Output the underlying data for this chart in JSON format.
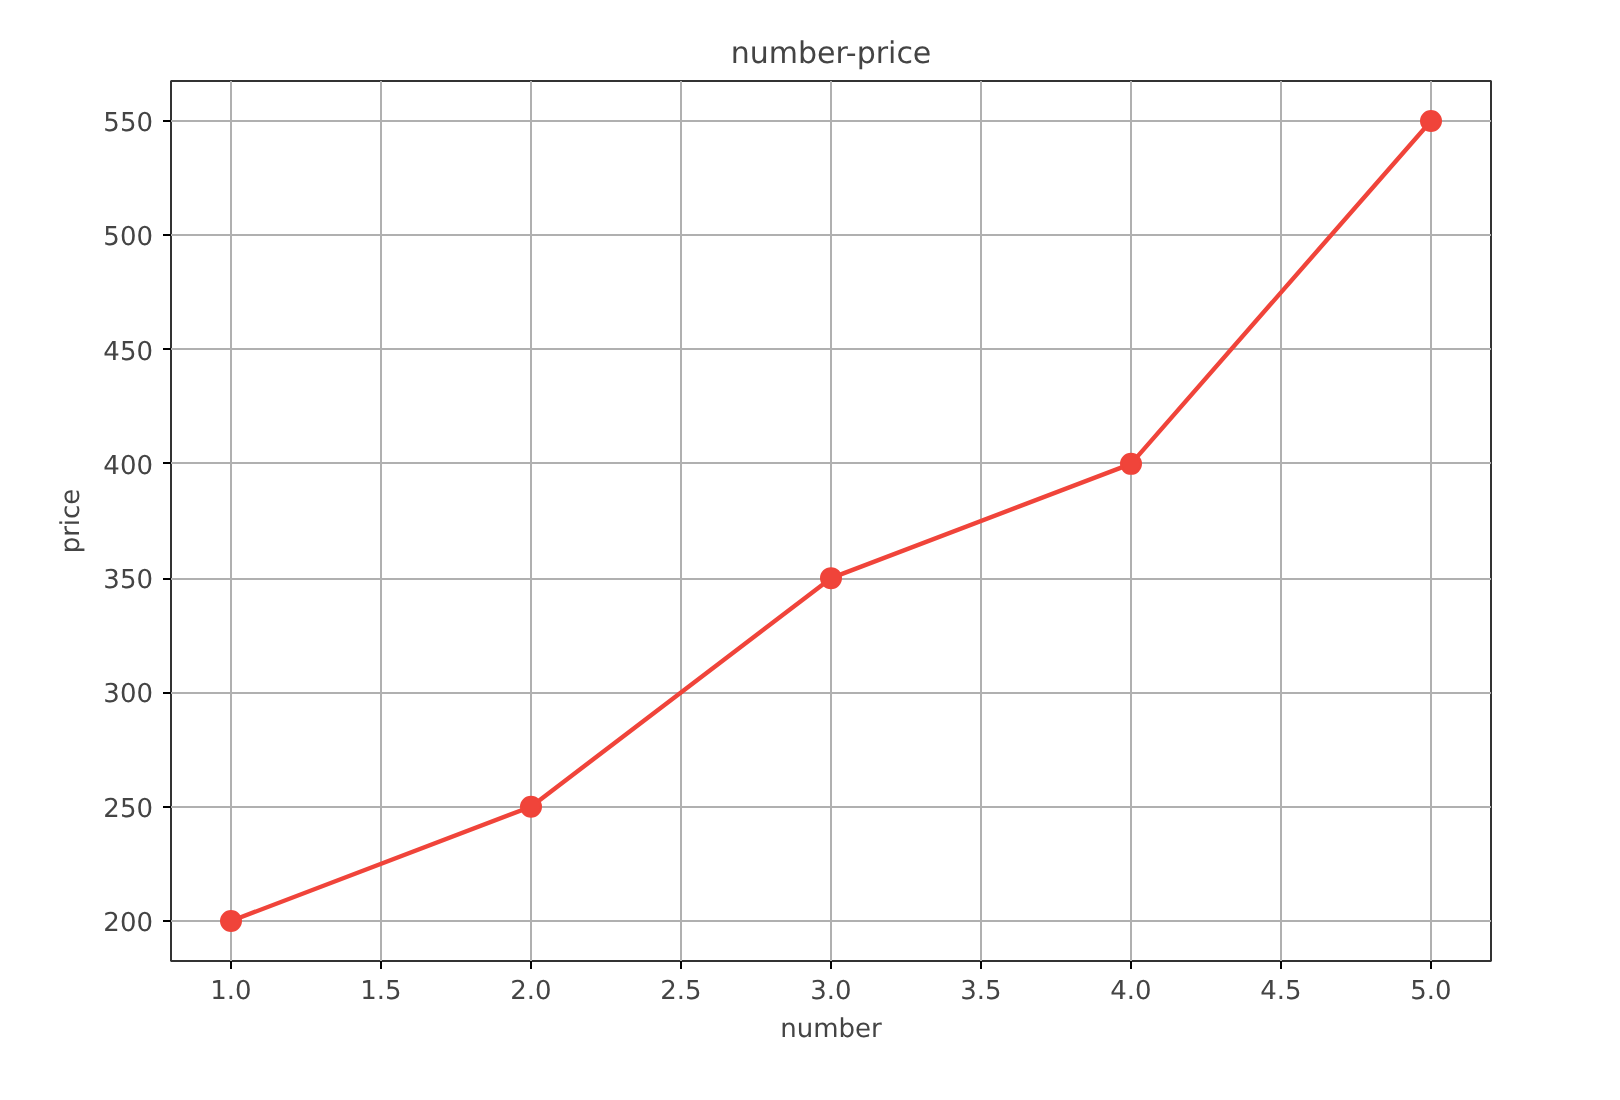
{
  "chart_data": {
    "type": "line",
    "title": "number-price",
    "xlabel": "number",
    "ylabel": "price",
    "x": [
      1,
      2,
      3,
      4,
      5
    ],
    "series": [
      {
        "color": "#f0443a",
        "values": [
          200,
          250,
          350,
          400,
          550
        ]
      }
    ],
    "xlim": [
      0.8,
      5.2
    ],
    "ylim": [
      182.5,
      567.5
    ],
    "xticks": [
      {
        "value": 1,
        "label": "1.0"
      },
      {
        "value": 1.5,
        "label": "1.5"
      },
      {
        "value": 2,
        "label": "2.0"
      },
      {
        "value": 2.5,
        "label": "2.5"
      },
      {
        "value": 3,
        "label": "3.0"
      },
      {
        "value": 3.5,
        "label": "3.5"
      },
      {
        "value": 4,
        "label": "4.0"
      },
      {
        "value": 4.5,
        "label": "4.5"
      },
      {
        "value": 5,
        "label": "5.0"
      }
    ],
    "yticks": [
      200,
      250,
      300,
      350,
      400,
      450,
      500,
      550
    ],
    "grid": true,
    "marker": "circle",
    "line_style": "solid"
  }
}
